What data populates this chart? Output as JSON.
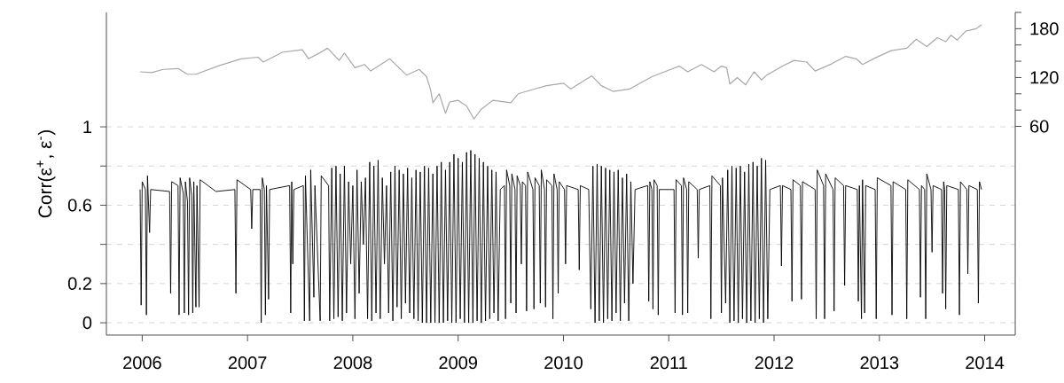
{
  "chart_data": {
    "type": "line",
    "ylabel": "Corr(ε$^{+}$, ε$^{-}$)",
    "xlim": [
      2005.66,
      2014.29
    ],
    "xticks": [
      2006,
      2007,
      2008,
      2009,
      2010,
      2011,
      2012,
      2013,
      2014
    ],
    "ylim": [
      -0.063,
      1.584
    ],
    "yticks": [
      0,
      0.2,
      {
        "value": 0.4,
        "label": null
      },
      0.6,
      {
        "value": 0.8,
        "label": null
      },
      1
    ],
    "y2lim": [
      -196.5,
      200
    ],
    "y2ticks": [
      60,
      {
        "value": 80,
        "label": null
      },
      {
        "value": 100,
        "label": null
      },
      120,
      {
        "value": 140,
        "label": null
      },
      {
        "value": 160,
        "label": null
      },
      180,
      {
        "value": 200,
        "label": null
      }
    ],
    "grid": "y",
    "series": [
      {
        "color": "#000000",
        "x": [
          2005.98,
          2005.99,
          2006.0,
          2006.03,
          2006.04,
          2006.05,
          2006.07,
          2006.08,
          2006.26,
          2006.27,
          2006.28,
          2006.34,
          2006.35,
          2006.36,
          2006.39,
          2006.4,
          2006.41,
          2006.43,
          2006.44,
          2006.45,
          2006.47,
          2006.48,
          2006.49,
          2006.51,
          2006.52,
          2006.54,
          2006.55,
          2006.7,
          2006.88,
          2006.89,
          2006.9,
          2007.03,
          2007.04,
          2007.05,
          2007.12,
          2007.13,
          2007.14,
          2007.16,
          2007.17,
          2007.18,
          2007.2,
          2007.21,
          2007.4,
          2007.41,
          2007.42,
          2007.43,
          2007.44,
          2007.53,
          2007.54,
          2007.55,
          2007.59,
          2007.6,
          2007.63,
          2007.64,
          2007.69,
          2007.7,
          2007.77,
          2007.78,
          2007.8,
          2007.82,
          2007.84,
          2007.86,
          2007.88,
          2007.9,
          2007.92,
          2007.94,
          2007.96,
          2007.98,
          2008.0,
          2008.02,
          2008.04,
          2008.06,
          2008.08,
          2008.1,
          2008.12,
          2008.14,
          2008.16,
          2008.18,
          2008.2,
          2008.22,
          2008.24,
          2008.26,
          2008.28,
          2008.3,
          2008.32,
          2008.34,
          2008.36,
          2008.38,
          2008.4,
          2008.42,
          2008.44,
          2008.46,
          2008.48,
          2008.5,
          2008.52,
          2008.54,
          2008.56,
          2008.58,
          2008.6,
          2008.62,
          2008.64,
          2008.66,
          2008.68,
          2008.7,
          2008.72,
          2008.74,
          2008.76,
          2008.78,
          2008.8,
          2008.82,
          2008.84,
          2008.86,
          2008.88,
          2008.9,
          2008.92,
          2008.94,
          2008.96,
          2008.98,
          2009.0,
          2009.02,
          2009.04,
          2009.06,
          2009.08,
          2009.1,
          2009.12,
          2009.14,
          2009.16,
          2009.18,
          2009.2,
          2009.22,
          2009.24,
          2009.26,
          2009.28,
          2009.3,
          2009.32,
          2009.34,
          2009.36,
          2009.38,
          2009.4,
          2009.44,
          2009.45,
          2009.46,
          2009.49,
          2009.5,
          2009.51,
          2009.54,
          2009.55,
          2009.56,
          2009.59,
          2009.6,
          2009.61,
          2009.64,
          2009.65,
          2009.66,
          2009.71,
          2009.72,
          2009.73,
          2009.77,
          2009.78,
          2009.79,
          2009.82,
          2009.83,
          2009.84,
          2009.89,
          2009.9,
          2009.91,
          2009.94,
          2009.95,
          2009.96,
          2010.01,
          2010.02,
          2010.03,
          2010.14,
          2010.15,
          2010.16,
          2010.24,
          2010.26,
          2010.28,
          2010.3,
          2010.32,
          2010.34,
          2010.36,
          2010.38,
          2010.4,
          2010.42,
          2010.44,
          2010.46,
          2010.48,
          2010.5,
          2010.52,
          2010.54,
          2010.56,
          2010.58,
          2010.6,
          2010.62,
          2010.64,
          2010.66,
          2010.68,
          2010.8,
          2010.81,
          2010.82,
          2010.84,
          2010.85,
          2010.86,
          2010.89,
          2010.9,
          2010.91,
          2011.05,
          2011.06,
          2011.07,
          2011.12,
          2011.13,
          2011.14,
          2011.17,
          2011.18,
          2011.19,
          2011.27,
          2011.28,
          2011.29,
          2011.39,
          2011.4,
          2011.41,
          2011.49,
          2011.5,
          2011.51,
          2011.54,
          2011.56,
          2011.58,
          2011.6,
          2011.62,
          2011.64,
          2011.66,
          2011.68,
          2011.7,
          2011.72,
          2011.74,
          2011.76,
          2011.78,
          2011.8,
          2011.82,
          2011.84,
          2011.86,
          2011.88,
          2011.9,
          2011.92,
          2011.94,
          2011.96,
          2012.06,
          2012.07,
          2012.08,
          2012.16,
          2012.17,
          2012.18,
          2012.25,
          2012.26,
          2012.27,
          2012.39,
          2012.4,
          2012.41,
          2012.47,
          2012.48,
          2012.49,
          2012.56,
          2012.57,
          2012.58,
          2012.66,
          2012.67,
          2012.68,
          2012.79,
          2012.8,
          2012.81,
          2012.83,
          2012.84,
          2012.86,
          2012.87,
          2012.96,
          2012.97,
          2012.98,
          2013.11,
          2013.12,
          2013.13,
          2013.25,
          2013.26,
          2013.27,
          2013.38,
          2013.39,
          2013.4,
          2013.43,
          2013.44,
          2013.45,
          2013.49,
          2013.5,
          2013.51,
          2013.59,
          2013.6,
          2013.61,
          2013.62,
          2013.63,
          2013.64,
          2013.75,
          2013.76,
          2013.77,
          2013.83,
          2013.84,
          2013.85,
          2013.93,
          2013.94,
          2013.95,
          2013.97
        ],
        "values": [
          0.68,
          0.09,
          0.72,
          0.68,
          0.04,
          0.75,
          0.46,
          0.68,
          0.67,
          0.15,
          0.72,
          0.7,
          0.04,
          0.74,
          0.66,
          0.05,
          0.72,
          0.62,
          0.04,
          0.74,
          0.65,
          0.05,
          0.72,
          0.08,
          0.7,
          0.08,
          0.73,
          0.67,
          0.68,
          0.15,
          0.73,
          0.68,
          0.48,
          0.68,
          0.68,
          0.0,
          0.74,
          0.68,
          0.04,
          0.7,
          0.12,
          0.68,
          0.7,
          0.05,
          0.72,
          0.3,
          0.68,
          0.7,
          0.01,
          0.75,
          0.01,
          0.78,
          0.13,
          0.7,
          0.01,
          0.75,
          0.7,
          0.01,
          0.79,
          0.02,
          0.8,
          0.03,
          0.76,
          0.01,
          0.8,
          0.05,
          0.72,
          0.3,
          0.7,
          0.02,
          0.78,
          0.15,
          0.72,
          0.4,
          0.74,
          0.02,
          0.82,
          0.01,
          0.8,
          0.05,
          0.83,
          0.02,
          0.74,
          0.3,
          0.7,
          0.05,
          0.77,
          0.01,
          0.8,
          0.08,
          0.78,
          0.02,
          0.76,
          0.1,
          0.79,
          0.05,
          0.74,
          0.02,
          0.78,
          0.01,
          0.77,
          0.0,
          0.8,
          0.0,
          0.79,
          0.0,
          0.76,
          0.0,
          0.8,
          0.0,
          0.82,
          0.0,
          0.78,
          0.01,
          0.82,
          0.0,
          0.86,
          0.0,
          0.84,
          0.02,
          0.82,
          0.0,
          0.87,
          0.0,
          0.88,
          0.0,
          0.86,
          0.01,
          0.84,
          0.0,
          0.82,
          0.01,
          0.8,
          0.02,
          0.78,
          0.05,
          0.77,
          0.01,
          0.68,
          0.7,
          0.02,
          0.78,
          0.7,
          0.1,
          0.76,
          0.68,
          0.05,
          0.75,
          0.7,
          0.3,
          0.72,
          0.7,
          0.06,
          0.77,
          0.68,
          0.07,
          0.74,
          0.7,
          0.1,
          0.78,
          0.68,
          0.08,
          0.73,
          0.7,
          0.02,
          0.76,
          0.68,
          0.15,
          0.72,
          0.68,
          0.3,
          0.7,
          0.68,
          0.27,
          0.7,
          0.68,
          0.07,
          0.8,
          0.0,
          0.81,
          0.01,
          0.8,
          0.0,
          0.79,
          0.02,
          0.78,
          0.01,
          0.77,
          0.05,
          0.78,
          0.01,
          0.74,
          0.1,
          0.76,
          0.01,
          0.72,
          0.2,
          0.68,
          0.7,
          0.11,
          0.72,
          0.68,
          0.07,
          0.73,
          0.7,
          0.04,
          0.68,
          0.68,
          0.05,
          0.73,
          0.7,
          0.04,
          0.74,
          0.68,
          0.05,
          0.72,
          0.68,
          0.33,
          0.68,
          0.7,
          0.02,
          0.75,
          0.7,
          0.05,
          0.74,
          0.1,
          0.78,
          0.0,
          0.8,
          0.01,
          0.79,
          0.0,
          0.8,
          0.02,
          0.77,
          0.0,
          0.81,
          0.01,
          0.82,
          0.0,
          0.8,
          0.02,
          0.84,
          0.0,
          0.83,
          0.02,
          0.68,
          0.7,
          0.29,
          0.7,
          0.68,
          0.11,
          0.73,
          0.7,
          0.12,
          0.72,
          0.68,
          0.02,
          0.78,
          0.7,
          0.02,
          0.76,
          0.68,
          0.06,
          0.74,
          0.7,
          0.19,
          0.7,
          0.68,
          0.11,
          0.7,
          0.02,
          0.73,
          0.05,
          0.7,
          0.68,
          0.02,
          0.74,
          0.7,
          0.04,
          0.72,
          0.68,
          0.02,
          0.73,
          0.68,
          0.13,
          0.7,
          0.68,
          0.02,
          0.76,
          0.68,
          0.36,
          0.7,
          0.68,
          0.15,
          0.72,
          0.68,
          0.07,
          0.7,
          0.68,
          0.04,
          0.72,
          0.68,
          0.25,
          0.7,
          0.68,
          0.1,
          0.72,
          0.68
        ]
      },
      {
        "axis": "y2",
        "color": "#a8a8a8",
        "x": [
          2005.98,
          2006.09,
          2006.2,
          2006.34,
          2006.43,
          2006.51,
          2006.74,
          2006.94,
          2007.1,
          2007.15,
          2007.33,
          2007.45,
          2007.52,
          2007.58,
          2007.68,
          2007.76,
          2007.87,
          2007.92,
          2008.02,
          2008.11,
          2008.17,
          2008.35,
          2008.51,
          2008.63,
          2008.7,
          2008.74,
          2008.76,
          2008.82,
          2008.88,
          2008.92,
          2009.0,
          2009.08,
          2009.15,
          2009.22,
          2009.33,
          2009.5,
          2009.57,
          2009.73,
          2009.84,
          2010.0,
          2010.07,
          2010.13,
          2010.27,
          2010.36,
          2010.47,
          2010.63,
          2010.84,
          2011.1,
          2011.18,
          2011.31,
          2011.43,
          2011.5,
          2011.55,
          2011.58,
          2011.65,
          2011.73,
          2011.81,
          2011.88,
          2011.93,
          2012.08,
          2012.19,
          2012.31,
          2012.39,
          2012.55,
          2012.68,
          2012.78,
          2012.84,
          2012.96,
          2013.11,
          2013.26,
          2013.35,
          2013.45,
          2013.55,
          2013.63,
          2013.68,
          2013.74,
          2013.82,
          2013.92,
          2013.97
        ],
        "values": [
          127,
          126,
          130,
          131,
          124,
          124,
          135,
          143,
          145,
          139,
          151,
          153,
          154,
          143,
          150,
          156,
          141,
          150,
          132,
          136,
          128,
          143,
          123,
          130,
          121,
          104,
          89,
          100,
          76,
          90,
          92,
          85,
          69,
          81,
          92,
          89,
          100,
          106,
          110,
          113,
          106,
          111,
          122,
          110,
          103,
          106,
          121,
          134,
          127,
          136,
          127,
          134,
          132,
          112,
          120,
          111,
          127,
          117,
          123,
          134,
          141,
          139,
          128,
          137,
          146,
          143,
          136,
          144,
          153,
          156,
          167,
          158,
          169,
          164,
          172,
          166,
          177,
          180,
          185
        ]
      }
    ]
  }
}
